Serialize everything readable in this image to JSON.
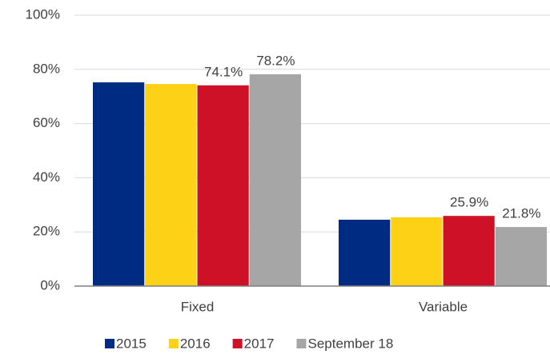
{
  "chart_data": {
    "type": "bar",
    "categories": [
      "Fixed",
      "Variable"
    ],
    "series": [
      {
        "name": "2015",
        "color": "#002b82",
        "values": [
          75.2,
          24.5
        ]
      },
      {
        "name": "2016",
        "color": "#fcd116",
        "values": [
          74.6,
          25.4
        ]
      },
      {
        "name": "2017",
        "color": "#ce1126",
        "values": [
          74.1,
          25.9
        ],
        "value_labels": [
          "74.1%",
          "25.9%"
        ]
      },
      {
        "name": "September 18",
        "color": "#a6a6a6",
        "values": [
          78.2,
          21.8
        ],
        "value_labels": [
          "78.2%",
          "21.8%"
        ]
      }
    ],
    "ylim": [
      0,
      100
    ],
    "yticks": [
      {
        "value": 0,
        "label": "0%"
      },
      {
        "value": 20,
        "label": "20%"
      },
      {
        "value": 40,
        "label": "40%"
      },
      {
        "value": 60,
        "label": "60%"
      },
      {
        "value": 80,
        "label": "80%"
      },
      {
        "value": 100,
        "label": "100%"
      }
    ],
    "grid": true,
    "legend": "bottom"
  }
}
